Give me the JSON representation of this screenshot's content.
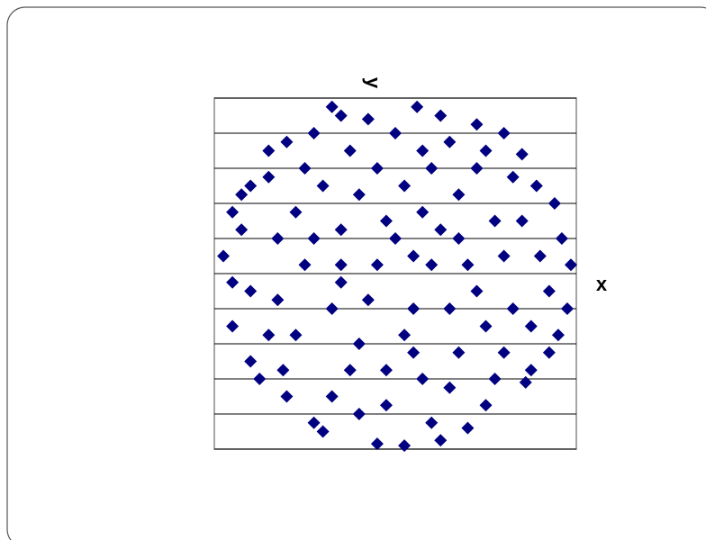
{
  "chart_data": {
    "type": "scatter",
    "x_label": "x",
    "y_label": "y",
    "color": "#000080",
    "xlim": [
      -1,
      1
    ],
    "ylim": [
      -1,
      1
    ],
    "yticks": [
      -1,
      -0.8,
      -0.6,
      -0.4,
      -0.2,
      0,
      0.2,
      0.4,
      0.6,
      0.8,
      1
    ],
    "grid": true,
    "x": [
      0.12,
      -0.3,
      0.45,
      -0.6,
      0.7,
      -0.85,
      0.88,
      -0.95,
      0.97,
      -0.9,
      0.9,
      -0.75,
      0.72,
      -0.45,
      0.4,
      -0.1,
      0.05,
      0.2,
      -0.4,
      0.55,
      -0.65,
      0.3,
      -0.2,
      0.6,
      -0.55,
      0.1,
      -0.05,
      0.35,
      -0.25,
      0.8,
      -0.8,
      0.15,
      -0.35,
      0.5,
      -0.7,
      0.65,
      0,
      -0.15,
      0.25,
      -0.5,
      0.45,
      0.75,
      -0.3,
      0.05,
      -0.6,
      0.3,
      -0.45,
      0.85,
      -0.85,
      0.2,
      -0.2,
      0.6,
      -0.1,
      0.4,
      -0.7,
      0.15,
      -0.35,
      0.55,
      -0.05,
      0.7,
      -0.9,
      0.92,
      -0.15,
      0.35,
      -0.5,
      0.1,
      -0.25,
      0.78,
      -0.62,
      0.25,
      0.5,
      -0.8,
      0.05,
      -0.4,
      0.65,
      -0.1,
      0.3,
      -0.55,
      0.85,
      -0.3,
      0.2,
      -0.7,
      0.45,
      -0.2,
      0.6,
      -0.9,
      0.95,
      0.1,
      -0.45,
      0.35,
      -0.05,
      0.75,
      -0.65,
      0.15,
      -0.3,
      0.5,
      -0.8,
      0.25,
      -0.35,
      0
    ],
    "values": [
      0.95,
      0.9,
      0.85,
      0.75,
      0.68,
      0.45,
      0.4,
      0.1,
      0.05,
      -0.3,
      -0.35,
      -0.6,
      -0.62,
      -0.85,
      -0.88,
      -0.97,
      -0.98,
      0.6,
      0.5,
      0.3,
      0.2,
      -0.2,
      -0.4,
      -0.45,
      -0.35,
      0.1,
      0.3,
      0.45,
      0.7,
      0.1,
      -0.1,
      -0.6,
      -0.7,
      -0.75,
      0.55,
      0.55,
      0.8,
      -0.15,
      0.25,
      0.05,
      -0.1,
      -0.3,
      0.25,
      -0.35,
      -0.7,
      0.75,
      0.8,
      -0.1,
      0.25,
      -0.85,
      0.45,
      0.1,
      0.6,
      0.05,
      -0.35,
      0.35,
      -0.2,
      -0.6,
      -0.75,
      0.3,
      -0.05,
      0.2,
      0.88,
      -0.45,
      0.6,
      -0.2,
      -0.55,
      0.5,
      -0.55,
      0.9,
      0.7,
      0.5,
      0.5,
      -0.9,
      -0.2,
      0.05,
      -0.65,
      0.35,
      -0.45,
      -0.05,
      0.05,
      0.7,
      0.6,
      -0.8,
      0.8,
      0.35,
      -0.2,
      -0.45,
      0.2,
      0.2,
      -0.55,
      -0.55,
      -0.15,
      0.7,
      0.05,
      -0.3,
      -0.5,
      -0.95,
      0.95,
      0.2
    ]
  }
}
